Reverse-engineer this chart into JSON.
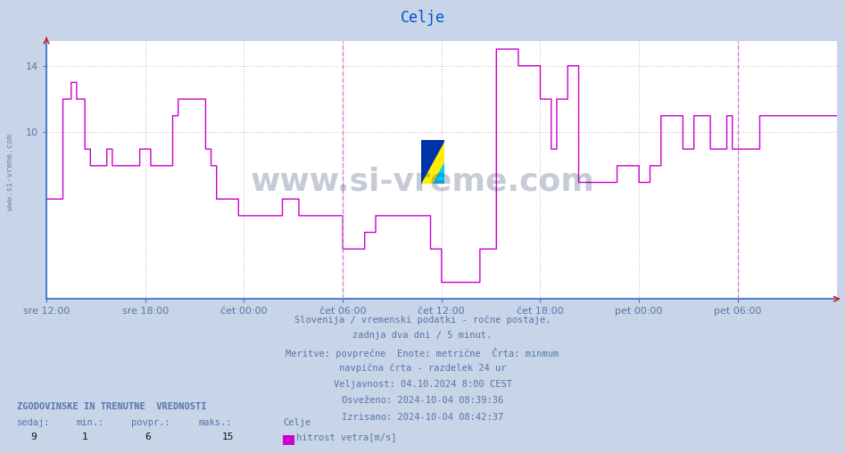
{
  "title": "Celje",
  "title_color": "#0055cc",
  "bg_color": "#c8d4e8",
  "plot_bg_color": "#ffffff",
  "grid_color_h": "#ffaaaa",
  "grid_color_v": "#ddaadd",
  "ylabel_text": "",
  "xlabel_text": "",
  "ymin": 0,
  "ymax": 15.5,
  "yticks": [
    10,
    14
  ],
  "line_color_magenta": "#cc00cc",
  "vline_color": "#cc88cc",
  "vline_style": "--",
  "watermark_text": "www.si-vreme.com",
  "watermark_color": "#223366",
  "watermark_alpha": 0.25,
  "footer_lines": [
    "Slovenija / vremenski podatki - ročne postaje.",
    "zadnja dva dni / 5 minut.",
    "Meritve: povprečne  Enote: metrične  Črta: minmum",
    "navpična črta - razdelek 24 ur",
    "Veljavnost: 04.10.2024 8:00 CEST",
    "Osveženo: 2024-10-04 08:39:36",
    "Izrisano: 2024-10-04 08:42:37"
  ],
  "footer_color": "#5577aa",
  "legend_title": "ZGODOVINSKE IN TRENUTNE  VREDNOSTI",
  "legend_headers": [
    "sedaj:",
    "min.:",
    "povpr.:",
    "maks.:",
    "Celje"
  ],
  "legend_values": [
    "9",
    "1",
    "6",
    "15"
  ],
  "legend_series": "hitrost vetra[m/s]",
  "legend_series_color": "#cc00cc",
  "x_tick_labels": [
    "sre 12:00",
    "sre 18:00",
    "čet 00:00",
    "čet 06:00",
    "čet 12:00",
    "čet 18:00",
    "pet 00:00",
    "pet 06:00"
  ],
  "x_tick_positions": [
    0,
    72,
    144,
    216,
    288,
    360,
    432,
    504
  ],
  "vline_positions": [
    216,
    504
  ],
  "n_points": 577,
  "wind_speed_data": [
    6,
    6,
    6,
    6,
    6,
    6,
    6,
    6,
    6,
    6,
    6,
    6,
    12,
    12,
    12,
    12,
    12,
    12,
    13,
    13,
    13,
    13,
    12,
    12,
    12,
    12,
    12,
    12,
    9,
    9,
    9,
    9,
    8,
    8,
    8,
    8,
    8,
    8,
    8,
    8,
    8,
    8,
    8,
    8,
    9,
    9,
    9,
    9,
    8,
    8,
    8,
    8,
    8,
    8,
    8,
    8,
    8,
    8,
    8,
    8,
    8,
    8,
    8,
    8,
    8,
    8,
    8,
    8,
    9,
    9,
    9,
    9,
    9,
    9,
    9,
    9,
    8,
    8,
    8,
    8,
    8,
    8,
    8,
    8,
    8,
    8,
    8,
    8,
    8,
    8,
    8,
    8,
    11,
    11,
    11,
    11,
    12,
    12,
    12,
    12,
    12,
    12,
    12,
    12,
    12,
    12,
    12,
    12,
    12,
    12,
    12,
    12,
    12,
    12,
    12,
    12,
    9,
    9,
    9,
    9,
    8,
    8,
    8,
    8,
    6,
    6,
    6,
    6,
    6,
    6,
    6,
    6,
    6,
    6,
    6,
    6,
    6,
    6,
    6,
    6,
    5,
    5,
    5,
    5,
    5,
    5,
    5,
    5,
    5,
    5,
    5,
    5,
    5,
    5,
    5,
    5,
    5,
    5,
    5,
    5,
    5,
    5,
    5,
    5,
    5,
    5,
    5,
    5,
    5,
    5,
    5,
    5,
    6,
    6,
    6,
    6,
    6,
    6,
    6,
    6,
    6,
    6,
    6,
    6,
    5,
    5,
    5,
    5,
    5,
    5,
    5,
    5,
    5,
    5,
    5,
    5,
    5,
    5,
    5,
    5,
    5,
    5,
    5,
    5,
    5,
    5,
    5,
    5,
    5,
    5,
    5,
    5,
    5,
    5,
    5,
    5,
    3,
    3,
    3,
    3,
    3,
    3,
    3,
    3,
    3,
    3,
    3,
    3,
    3,
    3,
    3,
    3,
    4,
    4,
    4,
    4,
    4,
    4,
    4,
    4,
    5,
    5,
    5,
    5,
    5,
    5,
    5,
    5,
    5,
    5,
    5,
    5,
    5,
    5,
    5,
    5,
    5,
    5,
    5,
    5,
    5,
    5,
    5,
    5,
    5,
    5,
    5,
    5,
    5,
    5,
    5,
    5,
    5,
    5,
    5,
    5,
    5,
    5,
    5,
    5,
    3,
    3,
    3,
    3,
    3,
    3,
    3,
    3,
    1,
    1,
    1,
    1,
    1,
    1,
    1,
    1,
    1,
    1,
    1,
    1,
    1,
    1,
    1,
    1,
    1,
    1,
    1,
    1,
    1,
    1,
    1,
    1,
    1,
    1,
    1,
    1,
    3,
    3,
    3,
    3,
    3,
    3,
    3,
    3,
    3,
    3,
    3,
    3,
    15,
    15,
    15,
    15,
    15,
    15,
    15,
    15,
    15,
    15,
    15,
    15,
    15,
    15,
    15,
    15,
    14,
    14,
    14,
    14,
    14,
    14,
    14,
    14,
    14,
    14,
    14,
    14,
    14,
    14,
    14,
    14,
    12,
    12,
    12,
    12,
    12,
    12,
    12,
    12,
    9,
    9,
    9,
    9,
    12,
    12,
    12,
    12,
    12,
    12,
    12,
    12,
    14,
    14,
    14,
    14,
    14,
    14,
    14,
    14,
    7,
    7,
    7,
    7,
    7,
    7,
    7,
    7,
    7,
    7,
    7,
    7,
    7,
    7,
    7,
    7,
    7,
    7,
    7,
    7,
    7,
    7,
    7,
    7,
    7,
    7,
    7,
    7,
    8,
    8,
    8,
    8,
    8,
    8,
    8,
    8,
    8,
    8,
    8,
    8,
    8,
    8,
    8,
    8,
    7,
    7,
    7,
    7,
    7,
    7,
    7,
    7,
    8,
    8,
    8,
    8,
    8,
    8,
    8,
    8,
    11,
    11,
    11,
    11,
    11,
    11,
    11,
    11,
    11,
    11,
    11,
    11,
    11,
    11,
    11,
    11,
    9,
    9,
    9,
    9,
    9,
    9,
    9,
    9,
    11,
    11,
    11,
    11,
    11,
    11,
    11,
    11,
    11,
    11,
    11,
    11,
    9,
    9,
    9,
    9,
    9,
    9,
    9,
    9,
    9,
    9,
    9,
    9,
    11,
    11,
    11,
    11,
    9,
    9,
    9,
    9,
    9,
    9,
    9,
    9,
    9,
    9,
    9,
    9,
    9,
    9,
    9,
    9,
    9,
    9,
    9,
    9,
    11,
    11,
    11,
    11,
    11,
    11,
    11,
    11
  ]
}
